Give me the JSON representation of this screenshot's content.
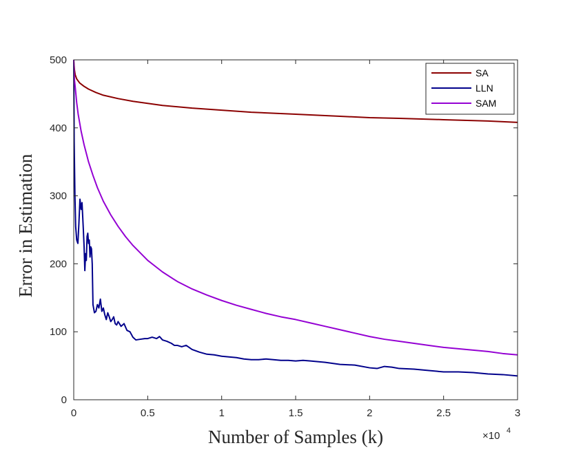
{
  "chart_data": {
    "type": "line",
    "title": "",
    "xlabel": "Number of Samples (k)",
    "ylabel": "Error in Estimation",
    "x_multiplier": {
      "base": "×10",
      "exponent": "4"
    },
    "xlim": [
      0,
      30000
    ],
    "ylim": [
      0,
      500
    ],
    "x_ticks": [
      0,
      5000,
      10000,
      15000,
      20000,
      25000,
      30000
    ],
    "x_tick_labels": [
      "0",
      "0.5",
      "1",
      "1.5",
      "2",
      "2.5",
      "3"
    ],
    "y_ticks": [
      0,
      100,
      200,
      300,
      400,
      500
    ],
    "y_tick_labels": [
      "0",
      "100",
      "200",
      "300",
      "400",
      "500"
    ],
    "grid": false,
    "legend_position": "top-right",
    "series": [
      {
        "name": "SA",
        "color": "#8b0000",
        "x": [
          0,
          20,
          50,
          100,
          200,
          400,
          700,
          1000,
          1500,
          2000,
          3000,
          4000,
          5000,
          6000,
          8000,
          10000,
          12000,
          15000,
          18000,
          20000,
          22000,
          25000,
          28000,
          30000
        ],
        "y": [
          500,
          493,
          485,
          478,
          472,
          466,
          461,
          457,
          452,
          448,
          443,
          439,
          436,
          433,
          429,
          426,
          423,
          420,
          417,
          415,
          414,
          412,
          410,
          408
        ]
      },
      {
        "name": "LLN",
        "color": "#00008b",
        "x": [
          0,
          30,
          80,
          130,
          200,
          280,
          350,
          420,
          500,
          560,
          650,
          700,
          750,
          800,
          850,
          900,
          950,
          1000,
          1050,
          1100,
          1150,
          1200,
          1250,
          1300,
          1400,
          1500,
          1600,
          1700,
          1800,
          1900,
          2000,
          2100,
          2200,
          2300,
          2400,
          2500,
          2600,
          2700,
          2800,
          2900,
          3000,
          3200,
          3400,
          3600,
          3800,
          4000,
          4200,
          4500,
          4800,
          5000,
          5300,
          5600,
          5800,
          6000,
          6300,
          6600,
          6800,
          7000,
          7300,
          7600,
          8000,
          8500,
          9000,
          9500,
          10000,
          10500,
          11000,
          11500,
          12000,
          12500,
          13000,
          13500,
          14000,
          14500,
          15000,
          15500,
          16000,
          17000,
          18000,
          19000,
          20000,
          20500,
          21000,
          21500,
          22000,
          23000,
          24000,
          25000,
          26000,
          27000,
          28000,
          29000,
          30000
        ],
        "y": [
          500,
          380,
          300,
          255,
          235,
          230,
          260,
          295,
          280,
          290,
          250,
          225,
          190,
          215,
          205,
          240,
          245,
          230,
          235,
          210,
          225,
          222,
          200,
          140,
          128,
          130,
          140,
          135,
          148,
          130,
          135,
          125,
          118,
          128,
          122,
          115,
          118,
          122,
          112,
          110,
          115,
          108,
          112,
          102,
          100,
          92,
          88,
          89,
          90,
          90,
          92,
          90,
          93,
          88,
          86,
          83,
          80,
          80,
          78,
          80,
          74,
          70,
          67,
          66,
          64,
          63,
          62,
          60,
          59,
          59,
          60,
          59,
          58,
          58,
          57,
          58,
          57,
          55,
          52,
          51,
          47,
          46,
          49,
          48,
          46,
          45,
          43,
          41,
          41,
          40,
          38,
          37,
          35
        ]
      },
      {
        "name": "SAM",
        "color": "#9400d3",
        "x": [
          0,
          50,
          100,
          200,
          300,
          500,
          700,
          1000,
          1300,
          1600,
          2000,
          2500,
          3000,
          3500,
          4000,
          5000,
          6000,
          7000,
          8000,
          9000,
          10000,
          11000,
          12000,
          13000,
          14000,
          15000,
          16000,
          17000,
          18000,
          19000,
          20000,
          21000,
          22000,
          23000,
          24000,
          25000,
          26000,
          27000,
          28000,
          29000,
          30000
        ],
        "y": [
          500,
          470,
          460,
          437,
          420,
          395,
          375,
          350,
          330,
          312,
          292,
          272,
          255,
          240,
          227,
          205,
          188,
          174,
          163,
          154,
          146,
          139,
          133,
          127,
          122,
          118,
          113,
          108,
          103,
          98,
          93,
          89,
          86,
          83,
          80,
          77,
          75,
          73,
          71,
          68,
          66
        ]
      }
    ]
  }
}
